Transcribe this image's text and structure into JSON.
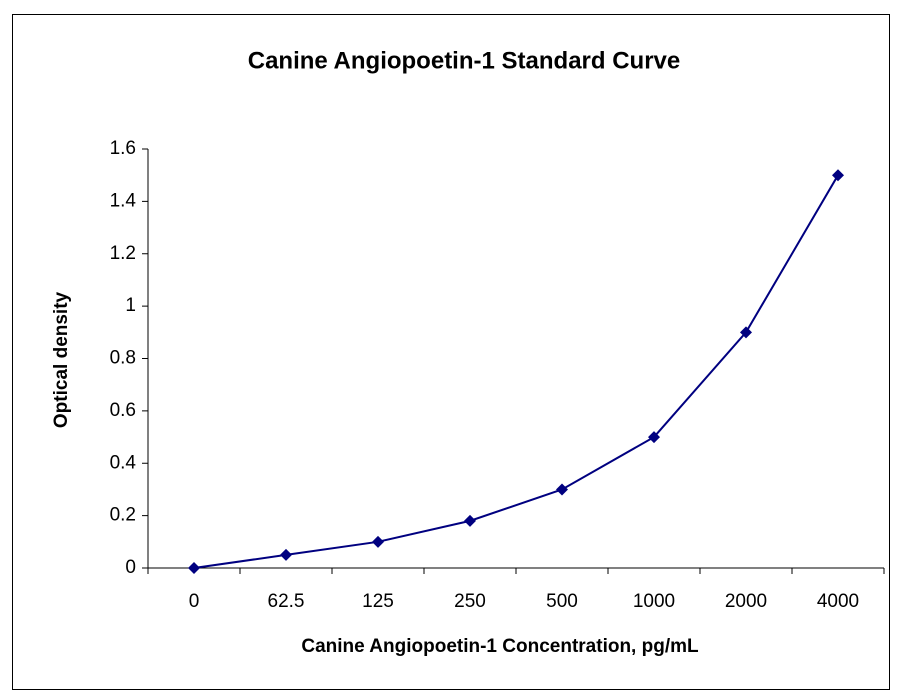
{
  "chart_data": {
    "type": "line",
    "title": "Canine Angiopoetin-1 Standard Curve",
    "x_label": "Canine Angiopoetin-1 Concentration, pg/mL",
    "y_label": "Optical density",
    "categories": [
      "0",
      "62.5",
      "125",
      "250",
      "500",
      "1000",
      "2000",
      "4000"
    ],
    "values": [
      0,
      0.05,
      0.1,
      0.18,
      0.3,
      0.5,
      0.9,
      1.5
    ],
    "color": "#000080",
    "ylim": [
      0,
      1.6
    ],
    "yticks": [
      0,
      0.2,
      0.4,
      0.6,
      0.8,
      1,
      1.2,
      1.4,
      1.6
    ],
    "grid": false
  }
}
